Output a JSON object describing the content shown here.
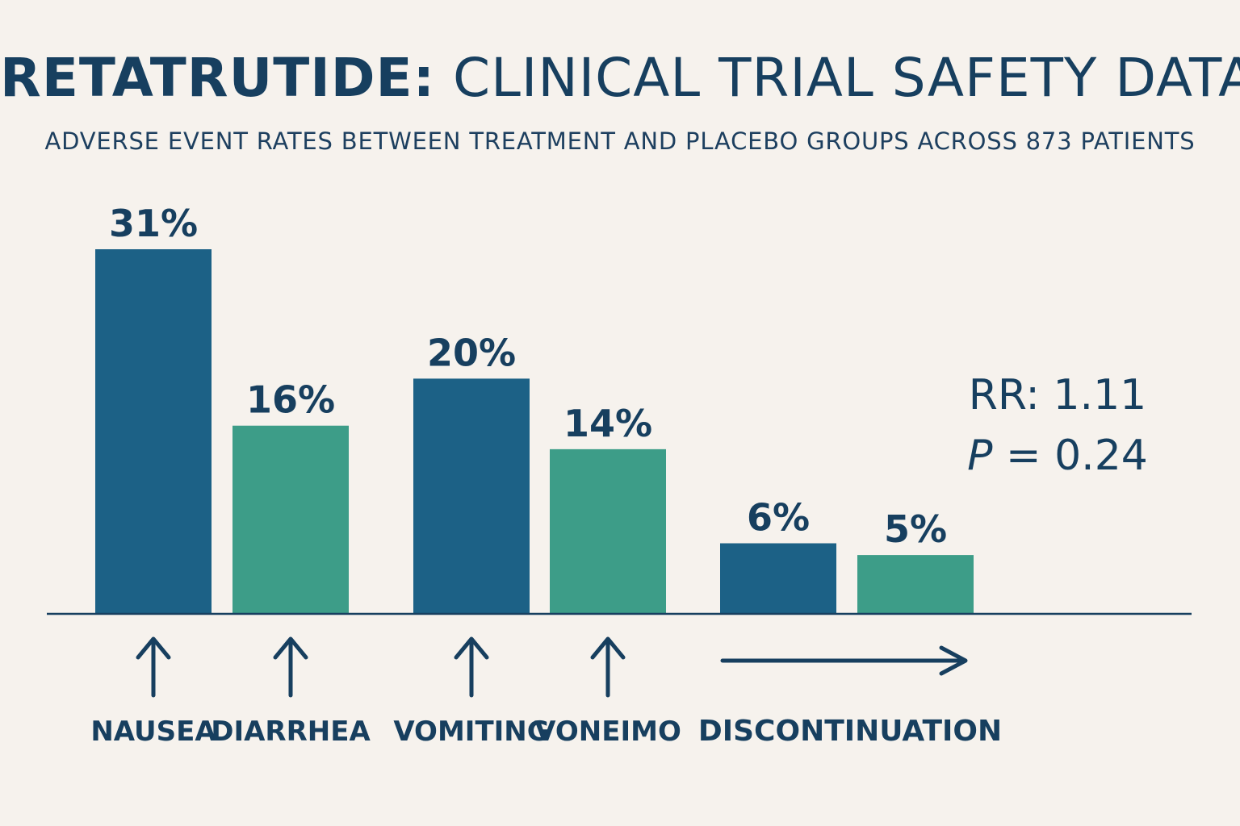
{
  "header": {
    "title_strong": "RETATRUTIDE:",
    "title_rest": "CLINICAL TRIAL SAFETY DATA",
    "subtitle": "ADVERSE EVENT RATES BETWEEN TREATMENT AND PLACEBO GROUPS ACROSS 873 PATIENTS"
  },
  "stats": {
    "rr": "RR: 1.11",
    "p_symbol": "P",
    "p_rest": " = 0.24"
  },
  "colors": {
    "treatment": "#1c6186",
    "placebo": "#3d9d88",
    "text": "#173f5f",
    "background": "#f6f2ed"
  },
  "chart_data": {
    "type": "bar",
    "ylim": [
      0,
      35
    ],
    "title": "RETATRUTIDE: CLINICAL TRIAL SAFETY DATA",
    "subtitle": "ADVERSE EVENT RATES BETWEEN TREATMENT AND PLACEBO GROUPS ACROSS 873 PATIENTS",
    "grid": false,
    "bars": [
      {
        "value": 31,
        "label": "31%",
        "group": "treatment"
      },
      {
        "value": 16,
        "label": "16%",
        "group": "placebo"
      },
      {
        "value": 20,
        "label": "20%",
        "group": "treatment"
      },
      {
        "value": 14,
        "label": "14%",
        "group": "placebo"
      },
      {
        "value": 6,
        "label": "6%",
        "group": "treatment"
      },
      {
        "value": 5,
        "label": "5%",
        "group": "placebo"
      }
    ],
    "category_labels": [
      {
        "text": "NAUSEA",
        "marker": "up-arrow",
        "bar": 0
      },
      {
        "text": "DIARRHEA",
        "marker": "up-arrow",
        "bar": 1
      },
      {
        "text": "VOMITING",
        "marker": "up-arrow",
        "bar": 2
      },
      {
        "text": "VONEIMO",
        "marker": "up-arrow",
        "bar": 3
      },
      {
        "text": "DISCONTINUATION",
        "marker": "right-arrow",
        "bar": [
          4,
          5
        ]
      }
    ]
  }
}
